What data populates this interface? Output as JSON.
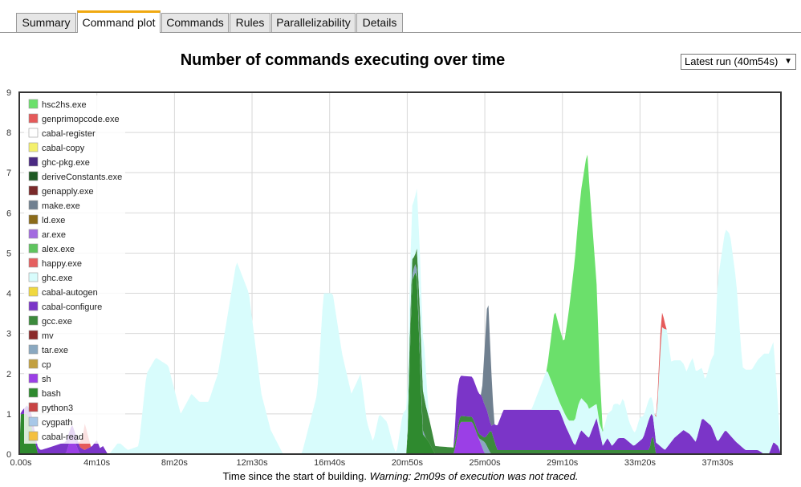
{
  "tabs": [
    {
      "label": "Summary",
      "active": false
    },
    {
      "label": "Command plot",
      "active": true
    },
    {
      "label": "Commands",
      "active": false
    },
    {
      "label": "Rules",
      "active": false
    },
    {
      "label": "Parallelizability",
      "active": false
    },
    {
      "label": "Details",
      "active": false
    }
  ],
  "run_selector": {
    "value": "Latest run (40m54s)"
  },
  "caption": {
    "text": "Time since the start of building.",
    "warning": "Warning: 2m09s of execution was not traced."
  },
  "chart_data": {
    "type": "area",
    "stacked": true,
    "title": "Number of commands executing over time",
    "xlabel": "Time since the start of building.",
    "ylabel": "",
    "xlim": [
      0,
      2454
    ],
    "ylim": [
      0,
      9
    ],
    "x_ticks": [
      {
        "value": 0,
        "label": "0.00s"
      },
      {
        "value": 250,
        "label": "4m10s"
      },
      {
        "value": 500,
        "label": "8m20s"
      },
      {
        "value": 750,
        "label": "12m30s"
      },
      {
        "value": 1000,
        "label": "16m40s"
      },
      {
        "value": 1250,
        "label": "20m50s"
      },
      {
        "value": 1500,
        "label": "25m00s"
      },
      {
        "value": 1750,
        "label": "29m10s"
      },
      {
        "value": 2000,
        "label": "33m20s"
      },
      {
        "value": 2250,
        "label": "37m30s"
      }
    ],
    "y_ticks": [
      0,
      1,
      2,
      3,
      4,
      5,
      6,
      7,
      8,
      9
    ],
    "grid": true,
    "legend_position": "top-left",
    "series": [
      {
        "name": "hsc2hs.exe",
        "color": "#6be06b",
        "x": [
          1700,
          1725,
          1755,
          1790,
          1830,
          1860,
          1870,
          1880
        ],
        "values": [
          0,
          2.0,
          1.7,
          4.0,
          6.3,
          3.0,
          1.3,
          0
        ]
      },
      {
        "name": "genprimopcode.exe",
        "color": "#e55a5a",
        "x": [
          190,
          205,
          212,
          218,
          224,
          230,
          2050,
          2065,
          2075,
          2085
        ],
        "values": [
          0,
          0.35,
          0.7,
          0.4,
          0.25,
          0,
          0,
          0.45,
          0.3,
          0
        ]
      },
      {
        "name": "cabal-register",
        "color": "#ffffff",
        "x": [
          0,
          2454
        ],
        "values": [
          0,
          0
        ]
      },
      {
        "name": "cabal-copy",
        "color": "#f4f06c",
        "x": [
          0,
          2454
        ],
        "values": [
          0,
          0
        ]
      },
      {
        "name": "ghc-pkg.exe",
        "color": "#4a2a82",
        "x": [
          0,
          2454
        ],
        "values": [
          0,
          0
        ]
      },
      {
        "name": "deriveConstants.exe",
        "color": "#1f5a24",
        "x": [
          0,
          2454
        ],
        "values": [
          0,
          0
        ]
      },
      {
        "name": "genapply.exe",
        "color": "#7a2a2a",
        "x": [
          0,
          2454
        ],
        "values": [
          0,
          0
        ]
      },
      {
        "name": "make.exe",
        "color": "#708090",
        "x": [
          1490,
          1510,
          1530
        ],
        "values": [
          0,
          3.0,
          0
        ]
      },
      {
        "name": "ld.exe",
        "color": "#8b6b1a",
        "x": [
          0,
          2454
        ],
        "values": [
          0,
          0
        ]
      },
      {
        "name": "ar.exe",
        "color": "#a36be0",
        "x": [
          0,
          2454
        ],
        "values": [
          0,
          0
        ]
      },
      {
        "name": "alex.exe",
        "color": "#5fc45f",
        "x": [
          0,
          2454
        ],
        "values": [
          0,
          0
        ]
      },
      {
        "name": "happy.exe",
        "color": "#e56060",
        "x": [
          0,
          2454
        ],
        "values": [
          0,
          0
        ]
      },
      {
        "name": "ghc.exe",
        "color": "#d8fcfc",
        "x": [
          290,
          320,
          350,
          385,
          410,
          440,
          480,
          520,
          555,
          580,
          610,
          640,
          700,
          740,
          780,
          810,
          850,
          880,
          910,
          960,
          980,
          1010,
          1040,
          1070,
          1100,
          1120,
          1140,
          1160,
          1185,
          1205,
          1215,
          1235,
          1255,
          1280,
          1305,
          1320,
          1340,
          1370,
          1400,
          1430,
          1460,
          1490,
          1510,
          1530,
          1560,
          1590,
          1620,
          1650,
          1700,
          1740,
          1770,
          1800,
          1830,
          1870,
          1890,
          1915,
          1935,
          1945,
          1965,
          1985,
          2000,
          2015,
          2030,
          2045,
          2055,
          2070,
          2085,
          2100,
          2130,
          2150,
          2170,
          2190,
          2210,
          2240,
          2250,
          2275,
          2290,
          2310,
          2330,
          2360,
          2400,
          2430,
          2454
        ],
        "values": [
          0,
          0.3,
          0.1,
          0.2,
          2.0,
          2.4,
          2.2,
          1.0,
          1.5,
          1.3,
          1.3,
          2.0,
          4.8,
          4.0,
          1.5,
          0.6,
          0,
          0,
          0,
          1.5,
          4.0,
          4.0,
          2.5,
          1.5,
          2.0,
          0.8,
          0.3,
          1.0,
          0.8,
          0.2,
          0,
          1.0,
          1.2,
          1.5,
          1.3,
          0,
          0,
          0,
          0,
          0,
          0,
          0,
          0,
          0,
          0,
          0,
          0,
          0,
          1.0,
          0.2,
          0.3,
          0.8,
          0.8,
          0.2,
          0.5,
          1.0,
          0.8,
          1.0,
          0.5,
          0.3,
          0.6,
          0.5,
          0.5,
          0.3,
          0.8,
          3.0,
          3.0,
          2.0,
          1.8,
          1.5,
          2.0,
          1.5,
          1.0,
          2.0,
          4.0,
          5.0,
          5.0,
          4.0,
          2.0,
          2.0,
          2.5,
          2.5,
          0
        ]
      },
      {
        "name": "cabal-autogen",
        "color": "#f0d840",
        "x": [
          0,
          2454
        ],
        "values": [
          0,
          0
        ]
      },
      {
        "name": "cabal-configure",
        "color": "#7b35c8",
        "x": [
          0,
          35,
          70,
          110,
          150,
          190,
          210,
          235,
          250,
          260,
          270,
          285,
          1400,
          1410,
          1430,
          1470,
          1490,
          1505,
          1520,
          1530,
          1560,
          1600,
          1640,
          1700,
          1740,
          1760,
          1790,
          1810,
          1835,
          1860,
          1880,
          1895,
          1910,
          1930,
          1950,
          1980,
          2010,
          2030,
          2050,
          2080,
          2110,
          2140,
          2160,
          2180,
          2200,
          2230,
          2250,
          2275,
          2310,
          2340,
          2380,
          2400,
          2415,
          2430,
          2445,
          2454
        ],
        "values": [
          0,
          0.3,
          0.1,
          0.2,
          0.3,
          0.2,
          0.1,
          0.2,
          0.35,
          0.15,
          0.2,
          0,
          0,
          1.0,
          1.0,
          1.0,
          1.0,
          0.7,
          0.1,
          0.4,
          1.0,
          1.0,
          1.0,
          1.0,
          1.0,
          0.6,
          0.1,
          0.5,
          0.3,
          0.8,
          0.1,
          0.3,
          0.1,
          0.3,
          0.3,
          0.1,
          0.3,
          0.8,
          0.3,
          0.1,
          0.4,
          0.6,
          0.5,
          0.3,
          0.9,
          0.7,
          0.3,
          0.6,
          0.3,
          0.1,
          0.1,
          0,
          0,
          0.3,
          0.2,
          0
        ]
      },
      {
        "name": "gcc.exe",
        "color": "#3c8a3c",
        "x": [
          1250,
          1255,
          1275,
          1290,
          1300,
          1320,
          1340,
          1500,
          1520,
          1540,
          2030,
          2040,
          2050
        ],
        "values": [
          0,
          0.6,
          0.2,
          1.0,
          1.0,
          0.6,
          0.2,
          0.1,
          0.6,
          0.1,
          0.1,
          0.5,
          0.1
        ]
      },
      {
        "name": "mv",
        "color": "#8b2b2b",
        "x": [
          0,
          2454
        ],
        "values": [
          0,
          0
        ]
      },
      {
        "name": "tar.exe",
        "color": "#8aa8c0",
        "x": [
          1255,
          1270,
          1290,
          1300,
          1310,
          1480,
          1500,
          1520
        ],
        "values": [
          0,
          0.2,
          0.2,
          0.1,
          0,
          0,
          0.3,
          0
        ],
        "note": null
      },
      {
        "name": "cp",
        "color": "#c2a040",
        "x": [
          0,
          2454
        ],
        "values": [
          0,
          0
        ]
      },
      {
        "name": "sh",
        "color": "#9b3fe6",
        "x": [
          150,
          170,
          195,
          1400,
          1420,
          1460,
          1500
        ],
        "values": [
          0,
          0.5,
          0,
          0,
          0.8,
          0.8,
          0
        ]
      },
      {
        "name": "bash",
        "color": "#2f8a2f",
        "x": [
          0,
          5,
          25,
          40,
          60,
          1250,
          1265,
          1280,
          1300,
          1320,
          1340
        ],
        "values": [
          0,
          1.0,
          1.0,
          0.7,
          0,
          0,
          4.3,
          4.6,
          0.5,
          0.3,
          0
        ]
      },
      {
        "name": "python3",
        "color": "#c84444",
        "x": [
          0,
          2454
        ],
        "values": [
          0,
          0
        ]
      },
      {
        "name": "cygpath",
        "color": "#a8c8e8",
        "x": [
          0,
          2454
        ],
        "values": [
          0,
          0
        ]
      },
      {
        "name": "cabal-read",
        "color": "#f4c040",
        "x": [
          0,
          2454
        ],
        "values": [
          0,
          0
        ]
      }
    ]
  }
}
